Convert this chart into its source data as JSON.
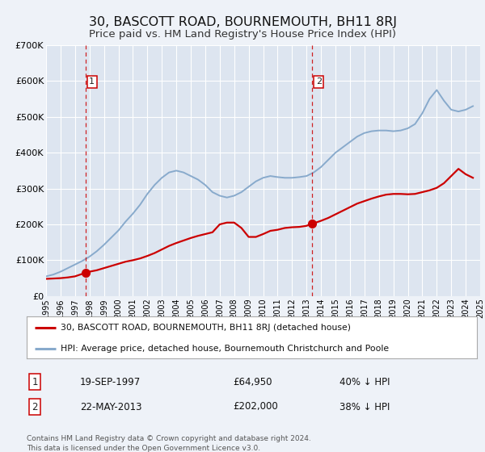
{
  "title": "30, BASCOTT ROAD, BOURNEMOUTH, BH11 8RJ",
  "subtitle": "Price paid vs. HM Land Registry's House Price Index (HPI)",
  "title_fontsize": 11.5,
  "subtitle_fontsize": 9.5,
  "bg_color": "#eef2f8",
  "plot_bg_color": "#dde5f0",
  "grid_color": "#ffffff",
  "red_line_color": "#cc0000",
  "blue_line_color": "#88aacc",
  "xmin": 1995,
  "xmax": 2025,
  "ymin": 0,
  "ymax": 700000,
  "yticks": [
    0,
    100000,
    200000,
    300000,
    400000,
    500000,
    600000,
    700000
  ],
  "ytick_labels": [
    "£0",
    "£100K",
    "£200K",
    "£300K",
    "£400K",
    "£500K",
    "£600K",
    "£700K"
  ],
  "marker1_x": 1997.72,
  "marker1_y": 64950,
  "marker2_x": 2013.39,
  "marker2_y": 202000,
  "vline1_x": 1997.72,
  "vline2_x": 2013.39,
  "legend_line1": "30, BASCOTT ROAD, BOURNEMOUTH, BH11 8RJ (detached house)",
  "legend_line2": "HPI: Average price, detached house, Bournemouth Christchurch and Poole",
  "annotation1_date": "19-SEP-1997",
  "annotation1_price": "£64,950",
  "annotation1_hpi": "40% ↓ HPI",
  "annotation2_date": "22-MAY-2013",
  "annotation2_price": "£202,000",
  "annotation2_hpi": "38% ↓ HPI",
  "footer": "Contains HM Land Registry data © Crown copyright and database right 2024.\nThis data is licensed under the Open Government Licence v3.0.",
  "red_x": [
    1995.0,
    1995.5,
    1996.0,
    1996.5,
    1997.0,
    1997.72,
    1998.0,
    1998.5,
    1999.0,
    1999.5,
    2000.0,
    2000.5,
    2001.0,
    2001.5,
    2002.0,
    2002.5,
    2003.0,
    2003.5,
    2004.0,
    2004.5,
    2005.0,
    2005.5,
    2006.0,
    2006.5,
    2007.0,
    2007.5,
    2008.0,
    2008.5,
    2009.0,
    2009.5,
    2010.0,
    2010.5,
    2011.0,
    2011.5,
    2012.0,
    2012.5,
    2013.0,
    2013.39,
    2013.5,
    2014.0,
    2014.5,
    2015.0,
    2015.5,
    2016.0,
    2016.5,
    2017.0,
    2017.5,
    2018.0,
    2018.5,
    2019.0,
    2019.5,
    2020.0,
    2020.5,
    2021.0,
    2021.5,
    2022.0,
    2022.5,
    2023.0,
    2023.5,
    2024.0,
    2024.5
  ],
  "red_y": [
    48000,
    49000,
    50000,
    52000,
    55000,
    64950,
    68000,
    72000,
    78000,
    84000,
    90000,
    96000,
    100000,
    105000,
    112000,
    120000,
    130000,
    140000,
    148000,
    155000,
    162000,
    168000,
    173000,
    178000,
    200000,
    205000,
    205000,
    190000,
    165000,
    165000,
    173000,
    182000,
    185000,
    190000,
    192000,
    193000,
    196000,
    202000,
    203000,
    210000,
    218000,
    228000,
    238000,
    248000,
    258000,
    265000,
    272000,
    278000,
    283000,
    285000,
    285000,
    284000,
    285000,
    290000,
    295000,
    302000,
    315000,
    335000,
    355000,
    340000,
    330000
  ],
  "blue_x": [
    1995.0,
    1995.5,
    1996.0,
    1996.5,
    1997.0,
    1997.5,
    1998.0,
    1998.5,
    1999.0,
    1999.5,
    2000.0,
    2000.5,
    2001.0,
    2001.5,
    2002.0,
    2002.5,
    2003.0,
    2003.5,
    2004.0,
    2004.5,
    2005.0,
    2005.5,
    2006.0,
    2006.5,
    2007.0,
    2007.5,
    2008.0,
    2008.5,
    2009.0,
    2009.5,
    2010.0,
    2010.5,
    2011.0,
    2011.5,
    2012.0,
    2012.5,
    2013.0,
    2013.5,
    2014.0,
    2014.5,
    2015.0,
    2015.5,
    2016.0,
    2016.5,
    2017.0,
    2017.5,
    2018.0,
    2018.5,
    2019.0,
    2019.5,
    2020.0,
    2020.5,
    2021.0,
    2021.5,
    2022.0,
    2022.5,
    2023.0,
    2023.5,
    2024.0,
    2024.5
  ],
  "blue_y": [
    55000,
    60000,
    68000,
    78000,
    88000,
    98000,
    110000,
    125000,
    143000,
    163000,
    183000,
    208000,
    230000,
    255000,
    285000,
    310000,
    330000,
    345000,
    350000,
    345000,
    335000,
    325000,
    310000,
    290000,
    280000,
    275000,
    280000,
    290000,
    305000,
    320000,
    330000,
    335000,
    332000,
    330000,
    330000,
    332000,
    335000,
    345000,
    360000,
    380000,
    400000,
    415000,
    430000,
    445000,
    455000,
    460000,
    462000,
    462000,
    460000,
    462000,
    468000,
    480000,
    510000,
    550000,
    575000,
    545000,
    520000,
    515000,
    520000,
    530000
  ]
}
